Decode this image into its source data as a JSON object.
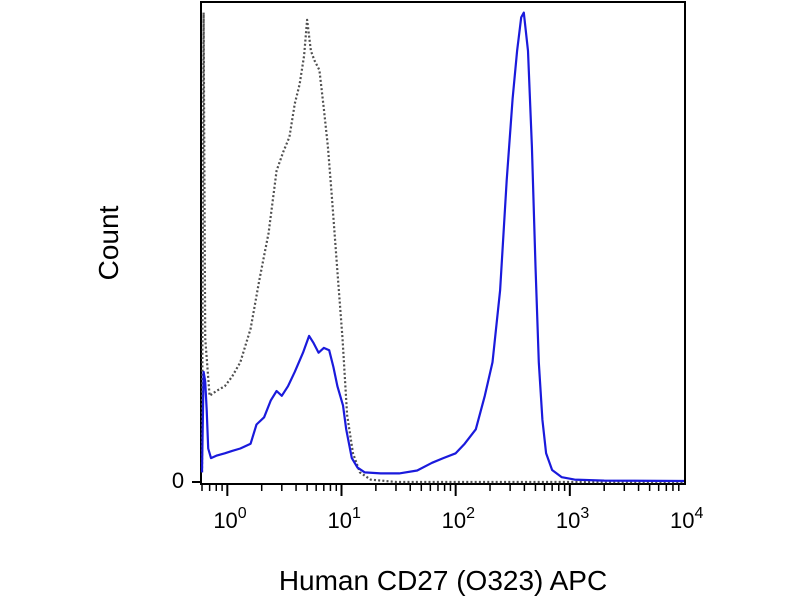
{
  "chart_data": {
    "type": "line",
    "title": "",
    "xlabel": "Human CD27 (O323) APC",
    "ylabel": "Count",
    "x_scale": "log",
    "xlim": [
      0.6,
      10000
    ],
    "ylim": [
      0,
      1
    ],
    "x_ticks": [
      {
        "value": 1,
        "base": "10",
        "exp": "0"
      },
      {
        "value": 10,
        "base": "10",
        "exp": "1"
      },
      {
        "value": 100,
        "base": "10",
        "exp": "2"
      },
      {
        "value": 1000,
        "base": "10",
        "exp": "3"
      },
      {
        "value": 10000,
        "base": "10",
        "exp": "4"
      }
    ],
    "y_ticks": [
      {
        "value": 0,
        "label": "0"
      }
    ],
    "grid": false,
    "legend": "none",
    "series": [
      {
        "style": "dotted",
        "color": "#505050",
        "points": [
          [
            0.6,
            0.02
          ],
          [
            0.62,
            0.98
          ],
          [
            0.64,
            0.3
          ],
          [
            0.7,
            0.18
          ],
          [
            0.8,
            0.19
          ],
          [
            0.95,
            0.2
          ],
          [
            1.1,
            0.22
          ],
          [
            1.3,
            0.25
          ],
          [
            1.6,
            0.32
          ],
          [
            1.9,
            0.42
          ],
          [
            2.3,
            0.52
          ],
          [
            2.7,
            0.65
          ],
          [
            3.1,
            0.69
          ],
          [
            3.5,
            0.72
          ],
          [
            3.9,
            0.79
          ],
          [
            4.3,
            0.83
          ],
          [
            4.7,
            0.89
          ],
          [
            5.0,
            0.965
          ],
          [
            5.4,
            0.9
          ],
          [
            5.8,
            0.88
          ],
          [
            6.4,
            0.86
          ],
          [
            7.0,
            0.78
          ],
          [
            7.6,
            0.7
          ],
          [
            8.2,
            0.6
          ],
          [
            9.2,
            0.44
          ],
          [
            10.2,
            0.3
          ],
          [
            11.2,
            0.14
          ],
          [
            12.6,
            0.06
          ],
          [
            14.5,
            0.02
          ],
          [
            18.0,
            0.005
          ],
          [
            30.0,
            0.0
          ],
          [
            100.0,
            0.0
          ],
          [
            1000.0,
            0.0
          ],
          [
            10000.0,
            0.0
          ]
        ]
      },
      {
        "style": "solid",
        "color": "#1a1adc",
        "points": [
          [
            0.6,
            0.02
          ],
          [
            0.62,
            0.23
          ],
          [
            0.64,
            0.21
          ],
          [
            0.66,
            0.15
          ],
          [
            0.68,
            0.07
          ],
          [
            0.72,
            0.05
          ],
          [
            0.8,
            0.055
          ],
          [
            0.95,
            0.06
          ],
          [
            1.1,
            0.065
          ],
          [
            1.3,
            0.07
          ],
          [
            1.6,
            0.08
          ],
          [
            1.8,
            0.12
          ],
          [
            2.1,
            0.135
          ],
          [
            2.4,
            0.17
          ],
          [
            2.7,
            0.19
          ],
          [
            3.0,
            0.18
          ],
          [
            3.4,
            0.2
          ],
          [
            3.9,
            0.23
          ],
          [
            4.6,
            0.27
          ],
          [
            5.2,
            0.305
          ],
          [
            5.7,
            0.29
          ],
          [
            6.3,
            0.27
          ],
          [
            7.0,
            0.28
          ],
          [
            7.8,
            0.275
          ],
          [
            8.5,
            0.24
          ],
          [
            9.2,
            0.2
          ],
          [
            10.3,
            0.16
          ],
          [
            11.0,
            0.11
          ],
          [
            12.3,
            0.05
          ],
          [
            13.8,
            0.03
          ],
          [
            16.0,
            0.02
          ],
          [
            22.0,
            0.018
          ],
          [
            32.0,
            0.018
          ],
          [
            46.0,
            0.024
          ],
          [
            62.0,
            0.04
          ],
          [
            78.0,
            0.05
          ],
          [
            100.0,
            0.06
          ],
          [
            120.0,
            0.08
          ],
          [
            150.0,
            0.11
          ],
          [
            180.0,
            0.18
          ],
          [
            210.0,
            0.25
          ],
          [
            245.0,
            0.4
          ],
          [
            280.0,
            0.63
          ],
          [
            315.0,
            0.8
          ],
          [
            345.0,
            0.9
          ],
          [
            375.0,
            0.97
          ],
          [
            395.0,
            0.98
          ],
          [
            430.0,
            0.9
          ],
          [
            465.0,
            0.7
          ],
          [
            500.0,
            0.45
          ],
          [
            535.0,
            0.25
          ],
          [
            575.0,
            0.13
          ],
          [
            620.0,
            0.06
          ],
          [
            700.0,
            0.025
          ],
          [
            850.0,
            0.01
          ],
          [
            1100.0,
            0.005
          ],
          [
            2000.0,
            0.003
          ],
          [
            10000.0,
            0.002
          ]
        ]
      }
    ]
  }
}
